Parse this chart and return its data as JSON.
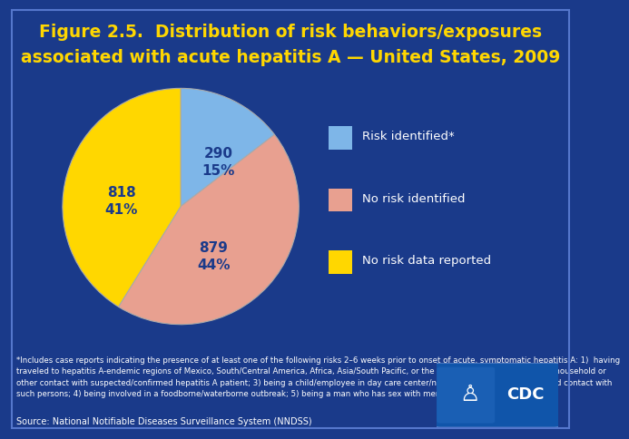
{
  "title_line1": "Figure 2.5.  Distribution of risk behaviors/exposures",
  "title_line2": "associated with acute hepatitis A — United States, 2009",
  "title_color": "#FFD700",
  "title_fontsize": 13.5,
  "background_color": "#1a3a8a",
  "footnote_background": "#0d2070",
  "values": [
    290,
    879,
    818
  ],
  "legend_labels": [
    "Risk identified*",
    "No risk identified",
    "No risk data reported"
  ],
  "colors": [
    "#7EB6E8",
    "#E8A090",
    "#FFD700"
  ],
  "startangle": 90,
  "footnote_line1": "*Includes case reports indicating the presence of at least one of the following risks 2–6 weeks prior to onset of acute, symptomatic hepatitis A: 1)  having",
  "footnote_line2": "traveled to hepatitis A-endemic regions of Mexico, South/Central America, Africa, Asia/South Pacific, or the Middle East; 2) having sexual/household or",
  "footnote_line3": "other contact with suspected/confirmed hepatitis A patient; 3) being a child/employee in day care center/nursery/preschool  or having had contact with",
  "footnote_line4": "such persons; 4) being involved in a foodborne/waterborne outbreak; 5) being a man who has sex with men; and 6) using injection drugs.",
  "source_text": "Source: National Notifiable Diseases Surveillance System (NNDSS)",
  "footnote_color": "#FFFFFF",
  "source_color": "#FFFFFF",
  "footnote_fontsize": 6.2,
  "source_fontsize": 7.0,
  "legend_text_color": "#FFFFFF",
  "legend_fontsize": 9.5,
  "label_fontsize": 11,
  "label_color": "#1a3a8a",
  "border_color": "#5577cc"
}
